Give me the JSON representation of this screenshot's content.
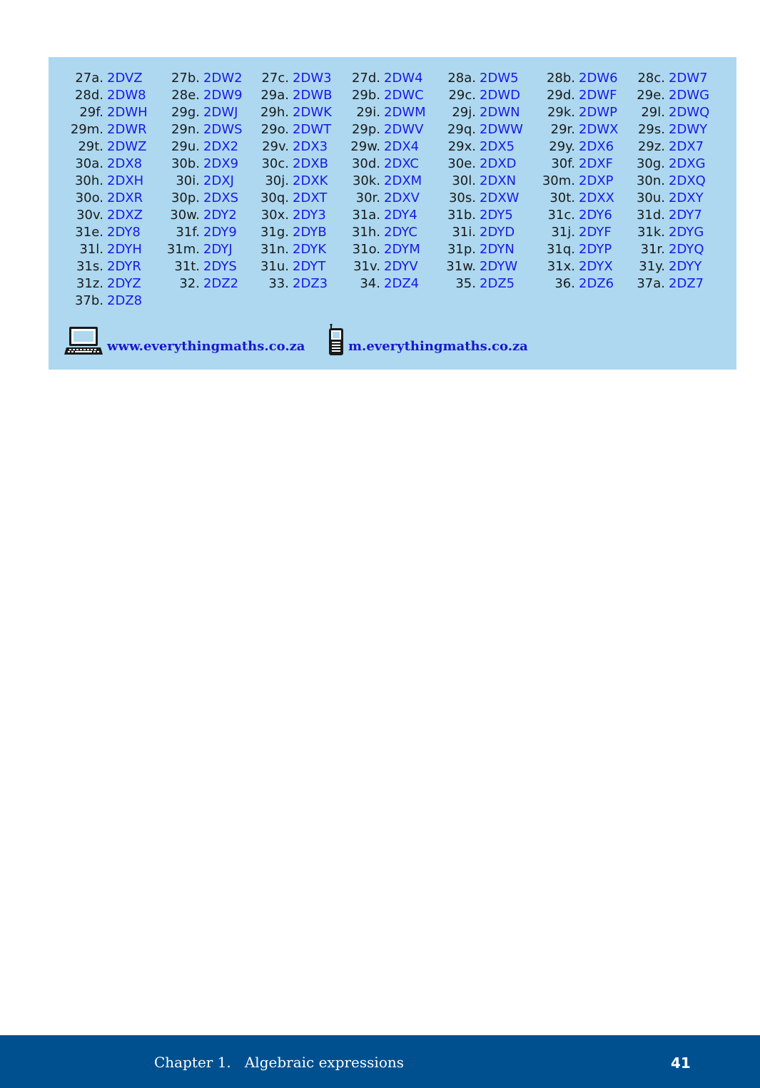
{
  "exercise_codes": [
    [
      "27a.",
      "2DVZ",
      "27b.",
      "2DW2",
      "27c.",
      "2DW3",
      "27d.",
      "2DW4",
      "28a.",
      "2DW5",
      "28b.",
      "2DW6",
      "28c.",
      "2DW7"
    ],
    [
      "28d.",
      "2DW8",
      "28e.",
      "2DW9",
      "29a.",
      "2DWB",
      "29b.",
      "2DWC",
      "29c.",
      "2DWD",
      "29d.",
      "2DWF",
      "29e.",
      "2DWG"
    ],
    [
      "29f.",
      "2DWH",
      "29g.",
      "2DWJ",
      "29h.",
      "2DWK",
      "29i.",
      "2DWM",
      "29j.",
      "2DWN",
      "29k.",
      "2DWP",
      "29l.",
      "2DWQ"
    ],
    [
      "29m.",
      "2DWR",
      "29n.",
      "2DWS",
      "29o.",
      "2DWT",
      "29p.",
      "2DWV",
      "29q.",
      "2DWW",
      "29r.",
      "2DWX",
      "29s.",
      "2DWY"
    ],
    [
      "29t.",
      "2DWZ",
      "29u.",
      "2DX2",
      "29v.",
      "2DX3",
      "29w.",
      "2DX4",
      "29x.",
      "2DX5",
      "29y.",
      "2DX6",
      "29z.",
      "2DX7"
    ],
    [
      "30a.",
      "2DX8",
      "30b.",
      "2DX9",
      "30c.",
      "2DXB",
      "30d.",
      "2DXC",
      "30e.",
      "2DXD",
      "30f.",
      "2DXF",
      "30g.",
      "2DXG"
    ],
    [
      "30h.",
      "2DXH",
      "30i.",
      "2DXJ",
      "30j.",
      "2DXK",
      "30k.",
      "2DXM",
      "30l.",
      "2DXN",
      "30m.",
      "2DXP",
      "30n.",
      "2DXQ"
    ],
    [
      "30o.",
      "2DXR",
      "30p.",
      "2DXS",
      "30q.",
      "2DXT",
      "30r.",
      "2DXV",
      "30s.",
      "2DXW",
      "30t.",
      "2DXX",
      "30u.",
      "2DXY"
    ],
    [
      "30v.",
      "2DXZ",
      "30w.",
      "2DY2",
      "30x.",
      "2DY3",
      "31a.",
      "2DY4",
      "31b.",
      "2DY5",
      "31c.",
      "2DY6",
      "31d.",
      "2DY7"
    ],
    [
      "31e.",
      "2DY8",
      "31f.",
      "2DY9",
      "31g.",
      "2DYB",
      "31h.",
      "2DYC",
      "31i.",
      "2DYD",
      "31j.",
      "2DYF",
      "31k.",
      "2DYG"
    ],
    [
      "31l.",
      "2DYH",
      "31m.",
      "2DYJ",
      "31n.",
      "2DYK",
      "31o.",
      "2DYM",
      "31p.",
      "2DYN",
      "31q.",
      "2DYP",
      "31r.",
      "2DYQ"
    ],
    [
      "31s.",
      "2DYR",
      "31t.",
      "2DYS",
      "31u.",
      "2DYT",
      "31v.",
      "2DYV",
      "31w.",
      "2DYW",
      "31x.",
      "2DYX",
      "31y.",
      "2DYY"
    ],
    [
      "31z.",
      "2DYZ",
      "32.",
      "2DZ2",
      "33.",
      "2DZ3",
      "34.",
      "2DZ4",
      "35.",
      "2DZ5",
      "36.",
      "2DZ6",
      "37a.",
      "2DZ7"
    ],
    [
      "37b.",
      "2DZ8"
    ]
  ],
  "links": {
    "web": {
      "icon": "laptop-icon",
      "text": "www.everythingmaths.co.za"
    },
    "mobile": {
      "icon": "mobile-phone-icon",
      "text": "m.everythingmaths.co.za"
    }
  },
  "footer": {
    "chapter": "Chapter 1.   Algebraic expressions",
    "page_number": "41"
  },
  "colors": {
    "box_background": "#add8ef",
    "code_link": "#1919e6",
    "footer_background": "#00508f"
  }
}
